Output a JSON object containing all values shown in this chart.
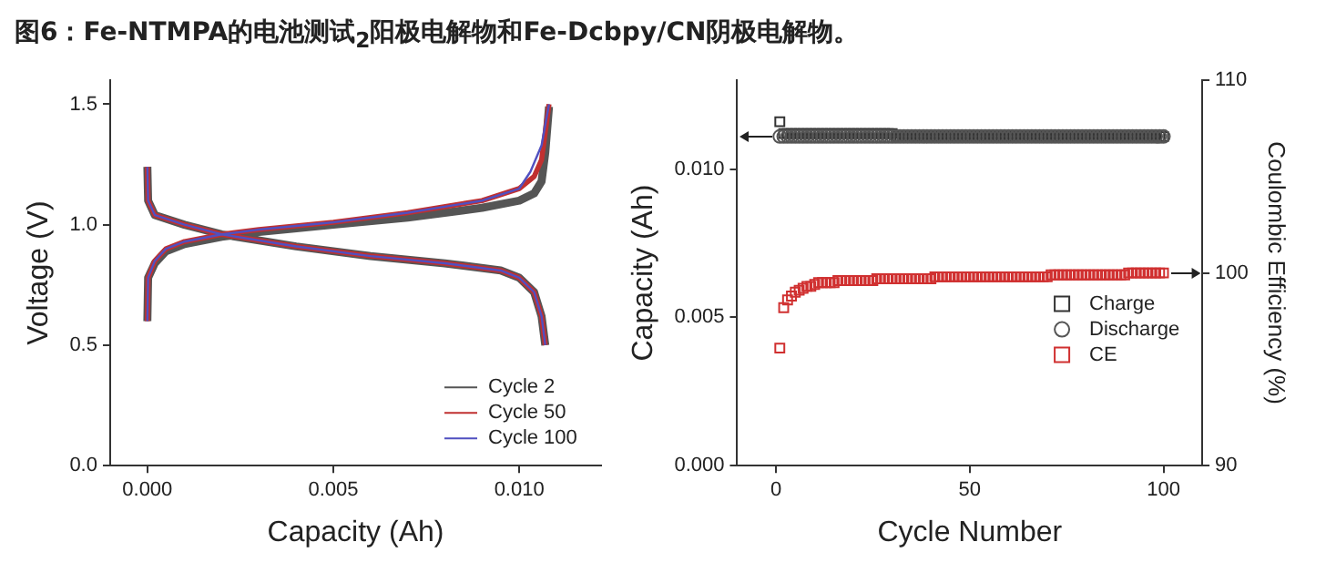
{
  "chart_data": [
    {
      "type": "line",
      "title": "图6：Fe-NTMPA的电池测试$_{2}$阳极电解物和Fe-Dcbpy/CN阴极电解物。",
      "xlabel": "Capacity (Ah)",
      "ylabel": "Voltage (V)",
      "xlim": [
        -0.001,
        0.0122
      ],
      "xticks": [
        {
          "value": 0,
          "label": "0.000"
        },
        {
          "value": 0.005,
          "label": "0.005"
        },
        {
          "value": 0.01,
          "label": "0.010"
        }
      ],
      "ylim": [
        0,
        1.6
      ],
      "yticks": [
        {
          "value": 0,
          "label": "0.0"
        },
        {
          "value": 0.5,
          "label": "0.5"
        },
        {
          "value": 1,
          "label": "1.0"
        },
        {
          "value": 1.5,
          "label": "1.5"
        }
      ],
      "grid": false,
      "legend": "bottom right",
      "marker": "none",
      "line_style": "solid",
      "series": [
        {
          "name": "Cycle 2",
          "color": "#555555",
          "x": [
            0,
            2e-05,
            0.0002,
            0.0005,
            0.001,
            0.002,
            0.003,
            0.005,
            0.007,
            0.009,
            0.01,
            0.0104,
            0.0106,
            0.0107,
            0.0108,
            null,
            0,
            2e-05,
            0.0002,
            0.001,
            0.002,
            0.004,
            0.006,
            0.008,
            0.0095,
            0.01,
            0.0104,
            0.0106,
            0.0107
          ],
          "values": [
            0.6,
            0.78,
            0.84,
            0.89,
            0.92,
            0.95,
            0.97,
            1.0,
            1.03,
            1.07,
            1.1,
            1.13,
            1.18,
            1.3,
            1.49,
            null,
            1.24,
            1.1,
            1.04,
            1.0,
            0.96,
            0.91,
            0.87,
            0.84,
            0.81,
            0.78,
            0.72,
            0.62,
            0.5
          ]
        },
        {
          "name": "Cycle 50",
          "color": "#c03030",
          "x": [
            0,
            2e-05,
            0.0002,
            0.0005,
            0.001,
            0.002,
            0.003,
            0.005,
            0.007,
            0.009,
            0.01,
            0.0104,
            0.0106,
            0.0108,
            null,
            0,
            2e-05,
            0.0002,
            0.001,
            0.002,
            0.004,
            0.006,
            0.008,
            0.0095,
            0.01,
            0.0104,
            0.0106,
            0.0107
          ],
          "values": [
            0.6,
            0.78,
            0.85,
            0.9,
            0.93,
            0.96,
            0.98,
            1.01,
            1.05,
            1.1,
            1.15,
            1.2,
            1.27,
            1.5,
            null,
            1.24,
            1.1,
            1.04,
            1.0,
            0.96,
            0.91,
            0.87,
            0.84,
            0.81,
            0.78,
            0.72,
            0.62,
            0.5
          ]
        },
        {
          "name": "Cycle 100",
          "color": "#5050c0",
          "x": [
            0,
            2e-05,
            0.0002,
            0.0005,
            0.001,
            0.002,
            0.003,
            0.005,
            0.007,
            0.009,
            0.01,
            0.0103,
            0.0106,
            0.0108,
            null,
            0,
            2e-05,
            0.0002,
            0.001,
            0.002,
            0.004,
            0.006,
            0.008,
            0.0095,
            0.01,
            0.0104,
            0.0106,
            0.0107
          ],
          "values": [
            0.6,
            0.78,
            0.85,
            0.9,
            0.93,
            0.96,
            0.98,
            1.01,
            1.05,
            1.1,
            1.15,
            1.22,
            1.33,
            1.5,
            null,
            1.24,
            1.1,
            1.04,
            1.0,
            0.96,
            0.91,
            0.87,
            0.84,
            0.81,
            0.78,
            0.72,
            0.62,
            0.5
          ]
        }
      ]
    },
    {
      "type": "scatter",
      "xlabel": "Cycle Number",
      "ylabel": "Capacity (Ah)",
      "y2label": "Coulombic Efficiency (%)",
      "xlim": [
        -10,
        110
      ],
      "xticks": [
        0,
        50,
        100
      ],
      "ylim": [
        0,
        0.013
      ],
      "yticks": [
        {
          "value": 0,
          "label": "0.000"
        },
        {
          "value": 0.005,
          "label": "0.005"
        },
        {
          "value": 0.01,
          "label": "0.010"
        }
      ],
      "y2lim": [
        90,
        110
      ],
      "y2ticks": [
        90,
        100,
        110
      ],
      "grid": false,
      "legend": "right",
      "x": [
        1,
        2,
        3,
        4,
        5,
        6,
        7,
        8,
        9,
        10,
        11,
        12,
        13,
        14,
        15,
        16,
        17,
        18,
        19,
        20,
        21,
        22,
        23,
        24,
        25,
        26,
        27,
        28,
        29,
        30,
        31,
        32,
        33,
        34,
        35,
        36,
        37,
        38,
        39,
        40,
        41,
        42,
        43,
        44,
        45,
        46,
        47,
        48,
        49,
        50,
        51,
        52,
        53,
        54,
        55,
        56,
        57,
        58,
        59,
        60,
        61,
        62,
        63,
        64,
        65,
        66,
        67,
        68,
        69,
        70,
        71,
        72,
        73,
        74,
        75,
        76,
        77,
        78,
        79,
        80,
        81,
        82,
        83,
        84,
        85,
        86,
        87,
        88,
        89,
        90,
        91,
        92,
        93,
        94,
        95,
        96,
        97,
        98,
        99,
        100
      ],
      "series": [
        {
          "name": "Charge",
          "color": "#333333",
          "marker": "square",
          "values": [
            0.0116,
            0.0112,
            0.0112,
            0.0112,
            0.0112,
            0.0112,
            0.0112,
            0.0112,
            0.0112,
            0.0112,
            0.0112,
            0.0112,
            0.0112,
            0.0112,
            0.0112,
            0.0112,
            0.0112,
            0.0112,
            0.0112,
            0.0112,
            0.0112,
            0.0112,
            0.0112,
            0.0112,
            0.0112,
            0.0112,
            0.0112,
            0.0112,
            0.0112,
            0.0112,
            0.0111,
            0.0111,
            0.0111,
            0.0111,
            0.0111,
            0.0111,
            0.0111,
            0.0111,
            0.0111,
            0.0111,
            0.0111,
            0.0111,
            0.0111,
            0.0111,
            0.0111,
            0.0111,
            0.0111,
            0.0111,
            0.0111,
            0.0111,
            0.0111,
            0.0111,
            0.0111,
            0.0111,
            0.0111,
            0.0111,
            0.0111,
            0.0111,
            0.0111,
            0.0111,
            0.0111,
            0.0111,
            0.0111,
            0.0111,
            0.0111,
            0.0111,
            0.0111,
            0.0111,
            0.0111,
            0.0111,
            0.0111,
            0.0111,
            0.0111,
            0.0111,
            0.0111,
            0.0111,
            0.0111,
            0.0111,
            0.0111,
            0.0111,
            0.0111,
            0.0111,
            0.0111,
            0.0111,
            0.0111,
            0.0111,
            0.0111,
            0.0111,
            0.0111,
            0.0111,
            0.0111,
            0.0111,
            0.0111,
            0.0111,
            0.0111,
            0.0111,
            0.0111,
            0.0111,
            0.0111,
            0.0111
          ]
        },
        {
          "name": "Discharge",
          "color": "#555555",
          "marker": "circle",
          "values": [
            0.0111,
            0.0111,
            0.0111,
            0.0111,
            0.0111,
            0.0111,
            0.0111,
            0.0111,
            0.0111,
            0.0111,
            0.0111,
            0.0111,
            0.0111,
            0.0111,
            0.0111,
            0.0111,
            0.0111,
            0.0111,
            0.0111,
            0.0111,
            0.0111,
            0.0111,
            0.0111,
            0.0111,
            0.0111,
            0.0111,
            0.0111,
            0.0111,
            0.0111,
            0.0111,
            0.0111,
            0.0111,
            0.0111,
            0.0111,
            0.0111,
            0.0111,
            0.0111,
            0.0111,
            0.0111,
            0.0111,
            0.0111,
            0.0111,
            0.0111,
            0.0111,
            0.0111,
            0.0111,
            0.0111,
            0.0111,
            0.0111,
            0.0111,
            0.0111,
            0.0111,
            0.0111,
            0.0111,
            0.0111,
            0.0111,
            0.0111,
            0.0111,
            0.0111,
            0.0111,
            0.0111,
            0.0111,
            0.0111,
            0.0111,
            0.0111,
            0.0111,
            0.0111,
            0.0111,
            0.0111,
            0.0111,
            0.0111,
            0.0111,
            0.0111,
            0.0111,
            0.0111,
            0.0111,
            0.0111,
            0.0111,
            0.0111,
            0.0111,
            0.0111,
            0.0111,
            0.0111,
            0.0111,
            0.0111,
            0.0111,
            0.0111,
            0.0111,
            0.0111,
            0.0111,
            0.0111,
            0.0111,
            0.0111,
            0.0111,
            0.0111,
            0.0111,
            0.0111,
            0.0111,
            0.0111,
            0.0111
          ]
        },
        {
          "name": "CE",
          "color": "#d03030",
          "marker": "square",
          "axis": "y2",
          "values": [
            96.1,
            98.2,
            98.6,
            98.8,
            99.0,
            99.1,
            99.2,
            99.3,
            99.3,
            99.4,
            99.5,
            99.5,
            99.5,
            99.5,
            99.5,
            99.6,
            99.6,
            99.6,
            99.6,
            99.6,
            99.6,
            99.6,
            99.6,
            99.6,
            99.6,
            99.7,
            99.7,
            99.7,
            99.7,
            99.7,
            99.7,
            99.7,
            99.7,
            99.7,
            99.7,
            99.7,
            99.7,
            99.7,
            99.7,
            99.7,
            99.8,
            99.8,
            99.8,
            99.8,
            99.8,
            99.8,
            99.8,
            99.8,
            99.8,
            99.8,
            99.8,
            99.8,
            99.8,
            99.8,
            99.8,
            99.8,
            99.8,
            99.8,
            99.8,
            99.8,
            99.8,
            99.8,
            99.8,
            99.8,
            99.8,
            99.8,
            99.8,
            99.8,
            99.8,
            99.8,
            99.9,
            99.9,
            99.9,
            99.9,
            99.9,
            99.9,
            99.9,
            99.9,
            99.9,
            99.9,
            99.9,
            99.9,
            99.9,
            99.9,
            99.9,
            99.9,
            99.9,
            99.9,
            99.9,
            99.9,
            100.0,
            100.0,
            100.0,
            100.0,
            100.0,
            100.0,
            100.0,
            100.0,
            100.0,
            100.0
          ]
        }
      ]
    }
  ]
}
